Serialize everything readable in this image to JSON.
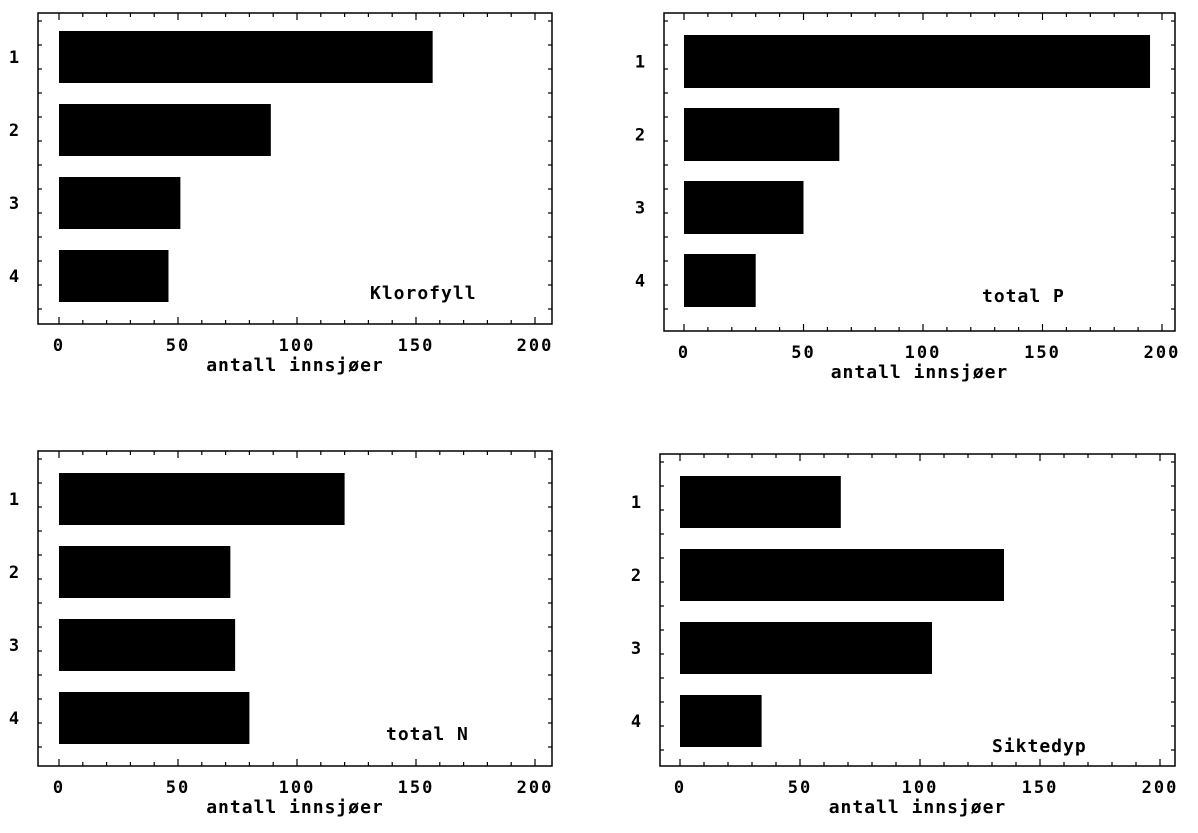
{
  "chart_data": [
    {
      "type": "bar",
      "orientation": "horizontal",
      "categories": [
        "1",
        "2",
        "3",
        "4"
      ],
      "values": [
        157,
        89,
        51,
        46
      ],
      "annotation": "Klorofyll",
      "xlabel": "antall innsjøer",
      "xlim": [
        0,
        200
      ],
      "xticks": [
        "0",
        "50",
        "100",
        "150",
        "200"
      ],
      "grid": false,
      "bar_color": "#000000"
    },
    {
      "type": "bar",
      "orientation": "horizontal",
      "categories": [
        "1",
        "2",
        "3",
        "4"
      ],
      "values": [
        195,
        65,
        50,
        30
      ],
      "annotation": "total P",
      "xlabel": "antall innsjøer",
      "xlim": [
        0,
        200
      ],
      "xticks": [
        "0",
        "50",
        "100",
        "150",
        "200"
      ],
      "grid": false,
      "bar_color": "#000000"
    },
    {
      "type": "bar",
      "orientation": "horizontal",
      "categories": [
        "1",
        "2",
        "3",
        "4"
      ],
      "values": [
        120,
        72,
        74,
        80
      ],
      "annotation": "total N",
      "xlabel": "antall innsjøer",
      "xlim": [
        0,
        200
      ],
      "xticks": [
        "0",
        "50",
        "100",
        "150",
        "200"
      ],
      "grid": false,
      "bar_color": "#000000"
    },
    {
      "type": "bar",
      "orientation": "horizontal",
      "categories": [
        "1",
        "2",
        "3",
        "4"
      ],
      "values": [
        67,
        135,
        105,
        34
      ],
      "annotation": "Siktedyp",
      "xlabel": "antall innsjøer",
      "xlim": [
        0,
        200
      ],
      "xticks": [
        "0",
        "50",
        "100",
        "150",
        "200"
      ],
      "grid": false,
      "bar_color": "#000000"
    }
  ]
}
